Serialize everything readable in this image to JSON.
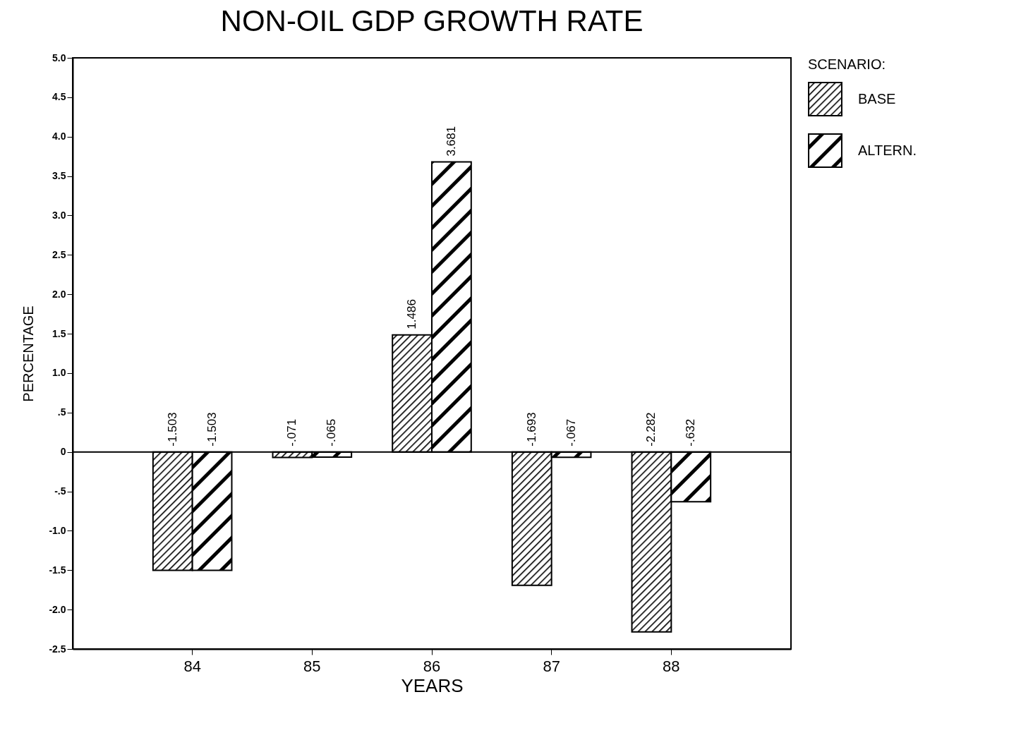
{
  "chart_data": {
    "type": "bar",
    "title": "NON-OIL GDP GROWTH RATE",
    "xlabel": "YEARS",
    "ylabel": "PERCENTAGE",
    "legend_title": "SCENARIO:",
    "categories": [
      "84",
      "85",
      "86",
      "87",
      "88"
    ],
    "series": [
      {
        "name": "BASE",
        "color": "#000000",
        "values": [
          -1.503,
          -0.071,
          1.486,
          -1.693,
          -2.282
        ],
        "value_labels": [
          "-1.503",
          "-.071",
          "1.486",
          "-1.693",
          "-2.282"
        ]
      },
      {
        "name": "ALTERN.",
        "color": "#000000",
        "values": [
          -1.503,
          -0.065,
          3.681,
          -0.067,
          -0.632
        ],
        "value_labels": [
          "-1.503",
          "-.065",
          "3.681",
          "-.067",
          "-.632"
        ]
      }
    ],
    "ylim": [
      -2.5,
      5
    ],
    "yticks": [
      {
        "value": -2.5,
        "label": "-2.5"
      },
      {
        "value": -2,
        "label": "-2.0"
      },
      {
        "value": -1.5,
        "label": "-1.5"
      },
      {
        "value": -1,
        "label": "-1.0"
      },
      {
        "value": -0.5,
        "label": "-.5"
      },
      0,
      {
        "value": 0.5,
        "label": ".5"
      },
      {
        "value": 1,
        "label": "1.0"
      },
      1.5,
      {
        "value": 2,
        "label": "2.0"
      },
      2.5,
      {
        "value": 3,
        "label": "3.0"
      },
      3.5,
      {
        "value": 4,
        "label": "4.0"
      },
      4.5,
      {
        "value": 5,
        "label": "5.0"
      }
    ],
    "ref_lines": [
      {
        "axis": "y",
        "value": 0
      }
    ],
    "grid": false,
    "legend": "top right"
  }
}
